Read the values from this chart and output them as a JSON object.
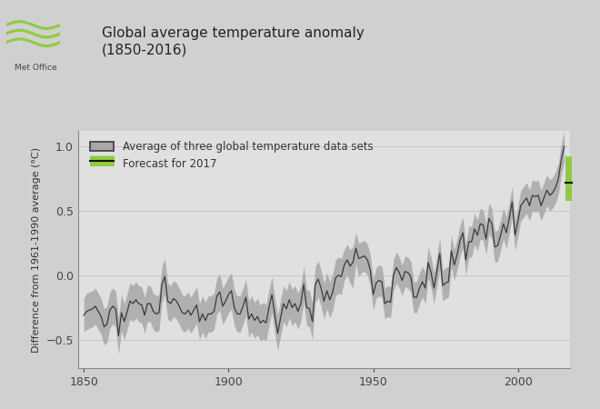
{
  "title": "Global average temperature anomaly\n(1850-2016)",
  "ylabel": "Difference from 1961-1990 average (°C)",
  "bg_color": "#d0d0d0",
  "plot_bg_color": "#e0e0e0",
  "line_color": "#3a3a3a",
  "shade_color": "#a8a8a8",
  "forecast_bar_color": "#8ecc3e",
  "forecast_line_color": "#111111",
  "legend_grey": "Average of three global temperature data sets",
  "legend_green": "Forecast for 2017",
  "ylim": [
    -0.72,
    1.12
  ],
  "xlim": [
    1848,
    2018
  ],
  "xticks": [
    1850,
    1900,
    1950,
    2000
  ],
  "yticks": [
    -0.5,
    0.0,
    0.5,
    1.0
  ],
  "forecast_year": 2016.8,
  "forecast_central": 0.72,
  "forecast_low": 0.58,
  "forecast_high": 0.92,
  "years": [
    1850,
    1851,
    1852,
    1853,
    1854,
    1855,
    1856,
    1857,
    1858,
    1859,
    1860,
    1861,
    1862,
    1863,
    1864,
    1865,
    1866,
    1867,
    1868,
    1869,
    1870,
    1871,
    1872,
    1873,
    1874,
    1875,
    1876,
    1877,
    1878,
    1879,
    1880,
    1881,
    1882,
    1883,
    1884,
    1885,
    1886,
    1887,
    1888,
    1889,
    1890,
    1891,
    1892,
    1893,
    1894,
    1895,
    1896,
    1897,
    1898,
    1899,
    1900,
    1901,
    1902,
    1903,
    1904,
    1905,
    1906,
    1907,
    1908,
    1909,
    1910,
    1911,
    1912,
    1913,
    1914,
    1915,
    1916,
    1917,
    1918,
    1919,
    1920,
    1921,
    1922,
    1923,
    1924,
    1925,
    1926,
    1927,
    1928,
    1929,
    1930,
    1931,
    1932,
    1933,
    1934,
    1935,
    1936,
    1937,
    1938,
    1939,
    1940,
    1941,
    1942,
    1943,
    1944,
    1945,
    1946,
    1947,
    1948,
    1949,
    1950,
    1951,
    1952,
    1953,
    1954,
    1955,
    1956,
    1957,
    1958,
    1959,
    1960,
    1961,
    1962,
    1963,
    1964,
    1965,
    1966,
    1967,
    1968,
    1969,
    1970,
    1971,
    1972,
    1973,
    1974,
    1975,
    1976,
    1977,
    1978,
    1979,
    1980,
    1981,
    1982,
    1983,
    1984,
    1985,
    1986,
    1987,
    1988,
    1989,
    1990,
    1991,
    1992,
    1993,
    1994,
    1995,
    1996,
    1997,
    1998,
    1999,
    2000,
    2001,
    2002,
    2003,
    2004,
    2005,
    2006,
    2007,
    2008,
    2009,
    2010,
    2011,
    2012,
    2013,
    2014,
    2015,
    2016
  ],
  "temps": [
    -0.31,
    -0.28,
    -0.27,
    -0.26,
    -0.24,
    -0.28,
    -0.32,
    -0.4,
    -0.38,
    -0.27,
    -0.24,
    -0.26,
    -0.47,
    -0.29,
    -0.36,
    -0.28,
    -0.2,
    -0.22,
    -0.19,
    -0.22,
    -0.23,
    -0.31,
    -0.22,
    -0.22,
    -0.28,
    -0.3,
    -0.29,
    -0.07,
    -0.01,
    -0.2,
    -0.22,
    -0.18,
    -0.2,
    -0.24,
    -0.29,
    -0.3,
    -0.27,
    -0.31,
    -0.27,
    -0.23,
    -0.36,
    -0.3,
    -0.35,
    -0.3,
    -0.3,
    -0.28,
    -0.16,
    -0.13,
    -0.24,
    -0.2,
    -0.15,
    -0.12,
    -0.25,
    -0.3,
    -0.3,
    -0.24,
    -0.17,
    -0.34,
    -0.3,
    -0.35,
    -0.32,
    -0.37,
    -0.35,
    -0.37,
    -0.25,
    -0.15,
    -0.31,
    -0.45,
    -0.33,
    -0.22,
    -0.26,
    -0.19,
    -0.25,
    -0.22,
    -0.28,
    -0.22,
    -0.07,
    -0.25,
    -0.26,
    -0.36,
    -0.07,
    -0.03,
    -0.1,
    -0.2,
    -0.12,
    -0.19,
    -0.13,
    -0.02,
    -0.0,
    -0.01,
    0.08,
    0.12,
    0.07,
    0.1,
    0.21,
    0.13,
    0.14,
    0.15,
    0.12,
    0.04,
    -0.15,
    -0.06,
    -0.04,
    -0.05,
    -0.22,
    -0.2,
    -0.21,
    -0.0,
    0.06,
    0.02,
    -0.04,
    0.03,
    0.02,
    -0.01,
    -0.17,
    -0.17,
    -0.1,
    -0.05,
    -0.1,
    0.1,
    0.02,
    -0.1,
    0.03,
    0.17,
    -0.08,
    -0.06,
    -0.05,
    0.19,
    0.08,
    0.16,
    0.27,
    0.33,
    0.12,
    0.26,
    0.26,
    0.36,
    0.31,
    0.4,
    0.39,
    0.28,
    0.44,
    0.4,
    0.22,
    0.23,
    0.31,
    0.4,
    0.33,
    0.44,
    0.57,
    0.31,
    0.42,
    0.54,
    0.57,
    0.6,
    0.54,
    0.62,
    0.61,
    0.62,
    0.54,
    0.6,
    0.66,
    0.62,
    0.64,
    0.68,
    0.75,
    0.9,
    1.0
  ],
  "unc_upper": [
    -0.18,
    -0.14,
    -0.13,
    -0.12,
    -0.1,
    -0.14,
    -0.18,
    -0.26,
    -0.24,
    -0.13,
    -0.1,
    -0.12,
    -0.33,
    -0.15,
    -0.22,
    -0.14,
    -0.06,
    -0.08,
    -0.05,
    -0.08,
    -0.09,
    -0.17,
    -0.08,
    -0.08,
    -0.14,
    -0.16,
    -0.15,
    0.07,
    0.13,
    -0.06,
    -0.08,
    -0.04,
    -0.06,
    -0.1,
    -0.15,
    -0.16,
    -0.13,
    -0.17,
    -0.13,
    -0.09,
    -0.22,
    -0.16,
    -0.21,
    -0.16,
    -0.16,
    -0.14,
    -0.02,
    0.01,
    -0.1,
    -0.06,
    -0.01,
    0.02,
    -0.11,
    -0.16,
    -0.16,
    -0.1,
    -0.03,
    -0.2,
    -0.16,
    -0.21,
    -0.18,
    -0.23,
    -0.21,
    -0.23,
    -0.11,
    -0.01,
    -0.17,
    -0.31,
    -0.19,
    -0.08,
    -0.12,
    -0.05,
    -0.11,
    -0.08,
    -0.14,
    -0.08,
    0.07,
    -0.11,
    -0.12,
    -0.22,
    0.07,
    0.11,
    0.04,
    -0.06,
    0.02,
    -0.05,
    0.01,
    0.12,
    0.14,
    0.13,
    0.2,
    0.24,
    0.2,
    0.22,
    0.33,
    0.25,
    0.26,
    0.27,
    0.24,
    0.16,
    -0.03,
    0.06,
    0.08,
    0.07,
    -0.1,
    -0.08,
    -0.09,
    0.12,
    0.18,
    0.14,
    0.08,
    0.15,
    0.14,
    0.11,
    -0.05,
    -0.05,
    0.02,
    0.07,
    0.02,
    0.22,
    0.14,
    0.02,
    0.15,
    0.29,
    0.04,
    0.06,
    0.07,
    0.31,
    0.2,
    0.28,
    0.39,
    0.45,
    0.24,
    0.38,
    0.38,
    0.48,
    0.43,
    0.52,
    0.51,
    0.4,
    0.56,
    0.52,
    0.34,
    0.35,
    0.43,
    0.52,
    0.45,
    0.56,
    0.69,
    0.43,
    0.54,
    0.66,
    0.69,
    0.72,
    0.66,
    0.74,
    0.73,
    0.74,
    0.66,
    0.72,
    0.78,
    0.74,
    0.76,
    0.8,
    0.87,
    1.02,
    1.12
  ],
  "unc_lower": [
    -0.44,
    -0.42,
    -0.41,
    -0.4,
    -0.38,
    -0.42,
    -0.46,
    -0.54,
    -0.52,
    -0.41,
    -0.38,
    -0.4,
    -0.61,
    -0.43,
    -0.5,
    -0.42,
    -0.34,
    -0.36,
    -0.33,
    -0.36,
    -0.37,
    -0.45,
    -0.36,
    -0.36,
    -0.42,
    -0.44,
    -0.43,
    -0.21,
    -0.15,
    -0.34,
    -0.36,
    -0.32,
    -0.34,
    -0.38,
    -0.43,
    -0.44,
    -0.41,
    -0.45,
    -0.41,
    -0.37,
    -0.5,
    -0.44,
    -0.49,
    -0.44,
    -0.44,
    -0.42,
    -0.3,
    -0.27,
    -0.38,
    -0.34,
    -0.29,
    -0.26,
    -0.39,
    -0.44,
    -0.44,
    -0.38,
    -0.31,
    -0.48,
    -0.44,
    -0.49,
    -0.46,
    -0.51,
    -0.49,
    -0.51,
    -0.39,
    -0.29,
    -0.45,
    -0.59,
    -0.47,
    -0.36,
    -0.4,
    -0.33,
    -0.39,
    -0.36,
    -0.42,
    -0.36,
    -0.21,
    -0.39,
    -0.4,
    -0.5,
    -0.21,
    -0.17,
    -0.24,
    -0.34,
    -0.26,
    -0.33,
    -0.27,
    -0.16,
    -0.14,
    -0.15,
    -0.04,
    0.0,
    -0.06,
    -0.1,
    0.09,
    -0.01,
    0.02,
    0.03,
    0.0,
    -0.08,
    -0.27,
    -0.18,
    -0.16,
    -0.17,
    -0.34,
    -0.32,
    -0.33,
    -0.12,
    -0.06,
    -0.1,
    -0.16,
    -0.09,
    -0.1,
    -0.13,
    -0.29,
    -0.29,
    -0.22,
    -0.17,
    -0.22,
    -0.02,
    -0.1,
    -0.22,
    -0.09,
    0.05,
    -0.2,
    -0.18,
    -0.17,
    0.07,
    -0.04,
    0.04,
    0.15,
    0.21,
    0.0,
    0.14,
    0.14,
    0.24,
    0.19,
    0.28,
    0.27,
    0.16,
    0.32,
    0.28,
    0.1,
    0.11,
    0.19,
    0.28,
    0.21,
    0.32,
    0.45,
    0.19,
    0.3,
    0.42,
    0.45,
    0.48,
    0.42,
    0.5,
    0.49,
    0.5,
    0.42,
    0.48,
    0.54,
    0.5,
    0.52,
    0.56,
    0.63,
    0.78,
    0.88
  ]
}
